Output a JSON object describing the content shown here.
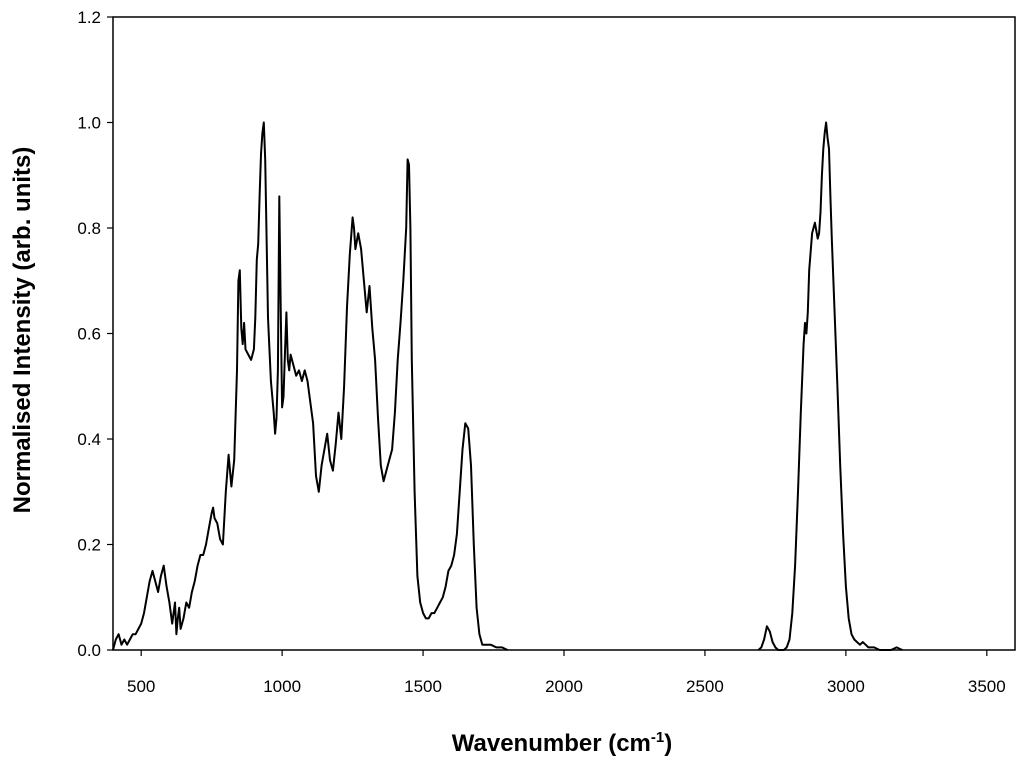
{
  "chart_data": {
    "type": "line",
    "title": "",
    "xlabel_main": "Wavenumber (cm",
    "xlabel_sup": "-1",
    "xlabel_close": ")",
    "ylabel": "Normalised Intensity (arb. units)",
    "xlim": [
      400,
      3600
    ],
    "ylim": [
      0.0,
      1.2
    ],
    "x_ticks": [
      500,
      1000,
      1500,
      2000,
      2500,
      3000,
      3500
    ],
    "y_ticks": [
      0.0,
      0.2,
      0.4,
      0.6,
      0.8,
      1.0,
      1.2
    ],
    "y_tick_labels": [
      "0.0",
      "0.2",
      "0.4",
      "0.6",
      "0.8",
      "1.0",
      "1.2"
    ],
    "grid": false,
    "line_color": "#000000",
    "series": [
      {
        "x": [
          400,
          410,
          420,
          430,
          440,
          450,
          460,
          470,
          480,
          490,
          500,
          510,
          520,
          530,
          540,
          550,
          560,
          570,
          580,
          590,
          600,
          610,
          620,
          625,
          630,
          635,
          640,
          650,
          660,
          670,
          680,
          690,
          700,
          710,
          720,
          730,
          740,
          750,
          755,
          760,
          770,
          780,
          790,
          800,
          810,
          815,
          820,
          830,
          840,
          845,
          850,
          855,
          860,
          865,
          870,
          880,
          890,
          900,
          905,
          910,
          915,
          920,
          925,
          930,
          935,
          940,
          945,
          950,
          960,
          970,
          975,
          980,
          985,
          990,
          995,
          1000,
          1005,
          1010,
          1015,
          1020,
          1025,
          1030,
          1040,
          1050,
          1060,
          1070,
          1080,
          1090,
          1100,
          1110,
          1120,
          1130,
          1140,
          1150,
          1160,
          1170,
          1180,
          1190,
          1200,
          1210,
          1220,
          1230,
          1240,
          1250,
          1255,
          1260,
          1270,
          1280,
          1290,
          1300,
          1310,
          1320,
          1330,
          1340,
          1350,
          1360,
          1370,
          1380,
          1390,
          1400,
          1410,
          1420,
          1430,
          1440,
          1445,
          1450,
          1455,
          1460,
          1470,
          1480,
          1490,
          1500,
          1510,
          1520,
          1530,
          1540,
          1550,
          1560,
          1570,
          1580,
          1590,
          1600,
          1610,
          1620,
          1630,
          1640,
          1650,
          1660,
          1670,
          1680,
          1690,
          1700,
          1710,
          1720,
          1740,
          1760,
          1780,
          1800
        ],
        "y": [
          0.0,
          0.02,
          0.03,
          0.01,
          0.02,
          0.01,
          0.02,
          0.03,
          0.03,
          0.04,
          0.05,
          0.07,
          0.1,
          0.13,
          0.15,
          0.13,
          0.11,
          0.14,
          0.16,
          0.12,
          0.09,
          0.05,
          0.09,
          0.03,
          0.06,
          0.08,
          0.04,
          0.06,
          0.09,
          0.08,
          0.11,
          0.13,
          0.16,
          0.18,
          0.18,
          0.2,
          0.23,
          0.26,
          0.27,
          0.25,
          0.24,
          0.21,
          0.2,
          0.3,
          0.37,
          0.34,
          0.31,
          0.36,
          0.53,
          0.7,
          0.72,
          0.61,
          0.58,
          0.62,
          0.57,
          0.56,
          0.55,
          0.57,
          0.63,
          0.74,
          0.77,
          0.86,
          0.94,
          0.98,
          1.0,
          0.93,
          0.78,
          0.63,
          0.51,
          0.45,
          0.41,
          0.44,
          0.53,
          0.86,
          0.65,
          0.46,
          0.48,
          0.56,
          0.64,
          0.55,
          0.53,
          0.56,
          0.54,
          0.52,
          0.53,
          0.51,
          0.53,
          0.51,
          0.47,
          0.43,
          0.33,
          0.3,
          0.35,
          0.38,
          0.41,
          0.36,
          0.34,
          0.39,
          0.45,
          0.4,
          0.5,
          0.65,
          0.75,
          0.82,
          0.8,
          0.76,
          0.79,
          0.76,
          0.7,
          0.64,
          0.69,
          0.61,
          0.55,
          0.44,
          0.35,
          0.32,
          0.34,
          0.36,
          0.38,
          0.45,
          0.55,
          0.62,
          0.7,
          0.8,
          0.93,
          0.92,
          0.8,
          0.55,
          0.3,
          0.14,
          0.09,
          0.07,
          0.06,
          0.06,
          0.07,
          0.07,
          0.08,
          0.09,
          0.1,
          0.12,
          0.15,
          0.16,
          0.18,
          0.22,
          0.3,
          0.38,
          0.43,
          0.42,
          0.35,
          0.2,
          0.08,
          0.03,
          0.01,
          0.01,
          0.01,
          0.005,
          0.005,
          0.0
        ]
      },
      {
        "x": [
          2690,
          2700,
          2710,
          2720,
          2730,
          2740,
          2750,
          2760,
          2770,
          2780,
          2790,
          2800,
          2810,
          2820,
          2830,
          2840,
          2850,
          2855,
          2860,
          2865,
          2870,
          2880,
          2890,
          2900,
          2905,
          2910,
          2915,
          2920,
          2925,
          2930,
          2935,
          2940,
          2945,
          2950,
          2960,
          2970,
          2980,
          2990,
          3000,
          3010,
          3020,
          3030,
          3040,
          3050,
          3060,
          3070,
          3080,
          3100,
          3120,
          3140,
          3160,
          3180,
          3200
        ],
        "y": [
          0.0,
          0.005,
          0.02,
          0.045,
          0.035,
          0.015,
          0.005,
          0.0,
          0.0,
          0.0,
          0.005,
          0.02,
          0.07,
          0.16,
          0.3,
          0.45,
          0.58,
          0.62,
          0.6,
          0.64,
          0.72,
          0.79,
          0.81,
          0.78,
          0.79,
          0.83,
          0.9,
          0.95,
          0.98,
          1.0,
          0.97,
          0.95,
          0.86,
          0.78,
          0.64,
          0.5,
          0.35,
          0.22,
          0.12,
          0.06,
          0.03,
          0.02,
          0.015,
          0.01,
          0.015,
          0.01,
          0.005,
          0.005,
          0.0,
          0.0,
          0.0,
          0.005,
          0.0
        ]
      }
    ]
  }
}
